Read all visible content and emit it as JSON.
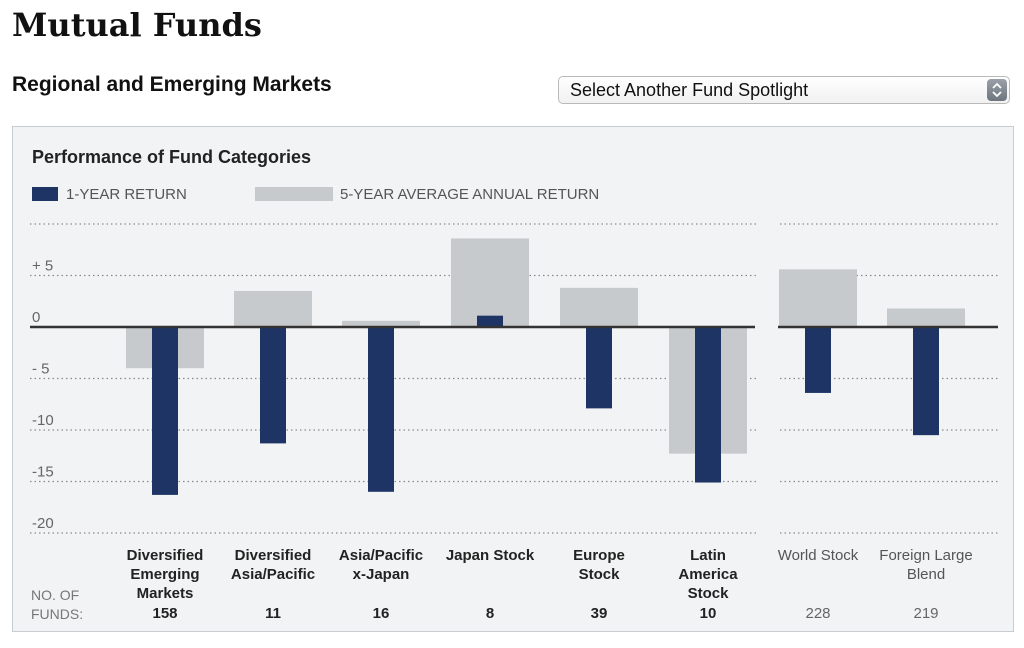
{
  "page_title": "Mutual Funds",
  "section_title": "Regional and Emerging Markets",
  "spotlight_select": {
    "selected": "Select Another Fund Spotlight"
  },
  "chart_data": {
    "type": "bar",
    "title": "Performance of Fund Categories",
    "categories": [
      "Diversified Emerging Markets",
      "Diversified Asia/Pacific",
      "Asia/Pacific x-Japan",
      "Japan Stock",
      "Europe Stock",
      "Latin America Stock",
      "World Stock",
      "Foreign Large Blend"
    ],
    "category_lines": [
      [
        "Diversified",
        "Emerging",
        "Markets"
      ],
      [
        "Diversified",
        "Asia/Pacific"
      ],
      [
        "Asia/Pacific",
        "x-Japan"
      ],
      [
        "Japan Stock"
      ],
      [
        "Europe",
        "Stock"
      ],
      [
        "Latin",
        "America",
        "Stock"
      ],
      [
        "World Stock"
      ],
      [
        "Foreign Large",
        "Blend"
      ]
    ],
    "highlighted_categories": 6,
    "series": [
      {
        "name": "1-YEAR RETURN",
        "color": "#1d3465",
        "values": [
          -16.3,
          -11.3,
          -16.0,
          1.1,
          -7.9,
          -15.1,
          -6.4,
          -10.5
        ]
      },
      {
        "name": "5-YEAR AVERAGE ANNUAL RETURN",
        "color": "#c7cacd",
        "values": [
          -4.0,
          3.5,
          0.6,
          8.6,
          3.8,
          -12.3,
          5.6,
          1.8
        ]
      }
    ],
    "ylim": [
      -20,
      10
    ],
    "yticks": [
      {
        "value": 5,
        "label": "+ 5"
      },
      {
        "value": 0,
        "label": "0"
      },
      {
        "value": -5,
        "label": "- 5"
      },
      {
        "value": -10,
        "label": "-10"
      },
      {
        "value": -15,
        "label": "-15"
      },
      {
        "value": -20,
        "label": "-20"
      }
    ],
    "grid": true,
    "count_label": [
      "NO. OF",
      "FUNDS:"
    ],
    "fund_counts": [
      "158",
      "11",
      "16",
      "8",
      "39",
      "10",
      "228",
      "219"
    ]
  }
}
